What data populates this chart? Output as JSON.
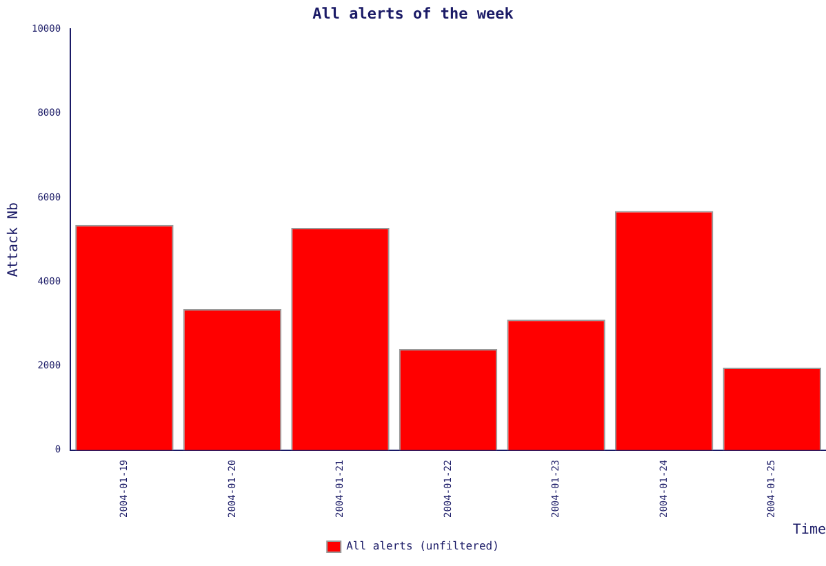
{
  "chart_data": {
    "type": "bar",
    "title": "All alerts of the week",
    "xlabel": "Time",
    "ylabel": "Attack Nb",
    "categories": [
      "2004-01-19",
      "2004-01-20",
      "2004-01-21",
      "2004-01-22",
      "2004-01-23",
      "2004-01-24",
      "2004-01-25"
    ],
    "series": [
      {
        "name": "All alerts (unfiltered)",
        "color": "#ff0000",
        "values": [
          5350,
          3350,
          5280,
          2400,
          3100,
          5680,
          1960
        ]
      }
    ],
    "ylim": [
      0,
      10000
    ],
    "yticks": [
      0,
      2000,
      4000,
      6000,
      8000,
      10000
    ],
    "grid": false,
    "legend": "bottom"
  }
}
